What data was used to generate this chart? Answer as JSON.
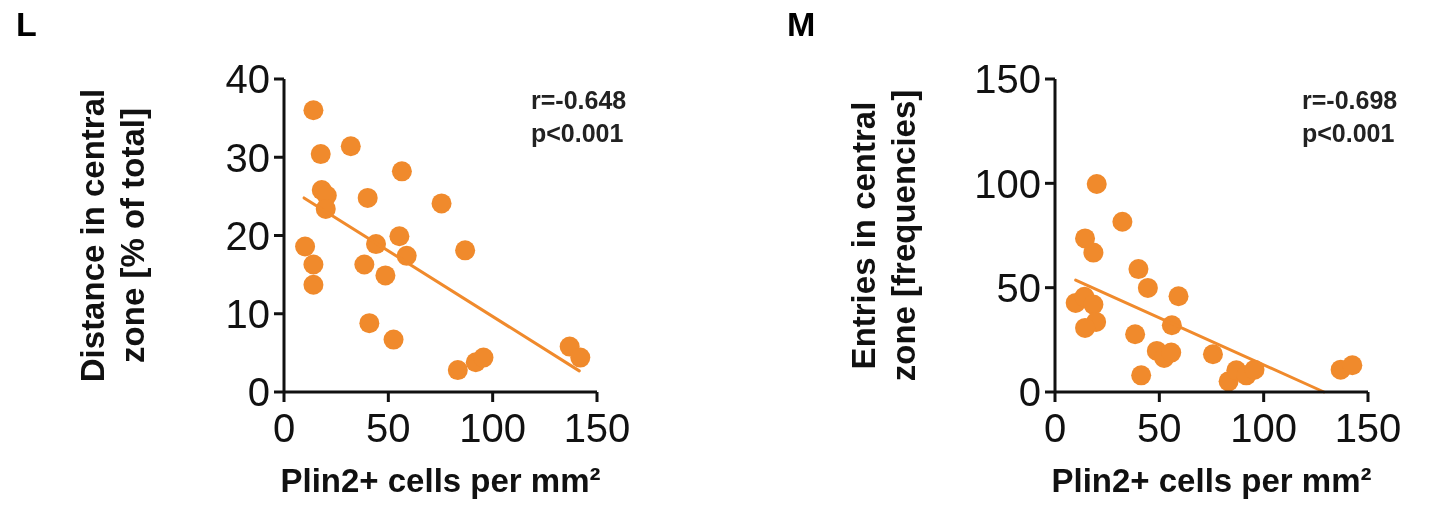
{
  "chart_data": [
    {
      "type": "scatter",
      "title": "L",
      "xlabel": "Plin2+ cells per mm²",
      "ylabel": "Distance in central zone [% of total]",
      "annotations": [
        "r=-0.648",
        "p<0.001"
      ],
      "xlim": [
        0,
        150
      ],
      "xticks": [
        0,
        50,
        100,
        150
      ],
      "ylim": [
        0,
        40
      ],
      "yticks": [
        0,
        10,
        20,
        30,
        40
      ],
      "grid": false,
      "marker": "circle",
      "series": [
        {
          "color": "#f08a2c",
          "x": [
            14.1,
            17.6,
            32,
            18.1,
            20.5,
            20,
            56.5,
            40.1,
            75.5,
            10.1,
            44.1,
            55.3,
            58.8,
            86.8,
            14.1,
            38.5,
            48.6,
            14.1,
            40.9,
            52.5,
            83.3,
            91.9,
            95.6,
            136.9,
            142
          ],
          "values": [
            36.0,
            30.4,
            31.4,
            25.8,
            25.1,
            23.4,
            28.2,
            24.8,
            24.1,
            18.6,
            18.9,
            19.9,
            17.4,
            18.1,
            16.3,
            16.3,
            14.9,
            13.7,
            8.8,
            6.7,
            2.8,
            3.8,
            4.4,
            5.8,
            4.4
          ]
        },
        {
          "type": "line",
          "color": "#f08a2c",
          "marker": "none",
          "x": [
            9.6,
            141.5
          ],
          "values": [
            24.8,
            2.7
          ]
        }
      ]
    },
    {
      "type": "scatter",
      "title": "M",
      "xlabel": "Plin2+ cells per mm²",
      "ylabel": "Entries in central zone [frequencies]",
      "annotations": [
        "r=-0.698",
        "p<0.001"
      ],
      "xlim": [
        0,
        150
      ],
      "xticks": [
        0,
        50,
        100,
        150
      ],
      "ylim": [
        0,
        150
      ],
      "yticks": [
        0,
        50,
        100,
        150
      ],
      "grid": false,
      "marker": "circle",
      "series": [
        {
          "color": "#f08a2c",
          "x": [
            20,
            32.3,
            14.4,
            18.4,
            40,
            44.5,
            59.2,
            9.9,
            14.1,
            18.4,
            19.7,
            14.4,
            56,
            38.4,
            48.8,
            52.3,
            55.7,
            75.7,
            41.3,
            83.2,
            86.9,
            91.7,
            95.6,
            136.9,
            142.5
          ],
          "values": [
            99.7,
            81.6,
            73.6,
            66.8,
            58.9,
            49.9,
            45.9,
            42.7,
            45.6,
            41.9,
            33.6,
            30.7,
            32,
            27.7,
            19.7,
            16.3,
            18.9,
            18.1,
            8,
            5.1,
            10.4,
            8,
            10.7,
            10.7,
            12.8
          ]
        },
        {
          "type": "line",
          "color": "#f08a2c",
          "marker": "none",
          "x": [
            9.9,
            128.9
          ],
          "values": [
            53.6,
            0
          ]
        }
      ]
    }
  ]
}
